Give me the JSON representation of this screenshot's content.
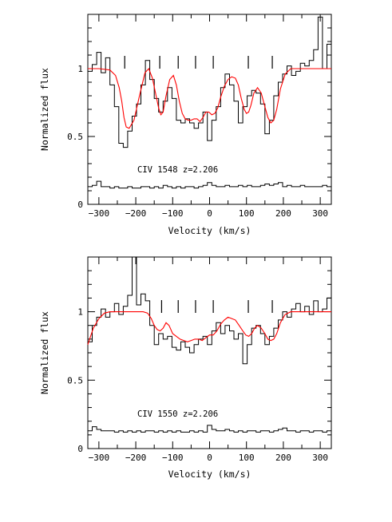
{
  "chart_data": [
    {
      "type": "line",
      "xlabel": "Velocity (km/s)",
      "ylabel": "Normalized flux",
      "xlim": [
        -330,
        330
      ],
      "ylim": [
        0,
        1.4
      ],
      "xticks": [
        -300,
        -200,
        -100,
        0,
        100,
        200,
        300
      ],
      "xtick_labels": [
        "−300",
        "−200",
        "−100",
        "0",
        "100",
        "200",
        "300"
      ],
      "yticks": [
        0,
        0.5,
        1
      ],
      "ytick_labels": [
        "0",
        "0.5",
        "1"
      ],
      "annotation": "CIV  1548  z=2.206",
      "component_markers": [
        -230,
        -135,
        -85,
        -38,
        10,
        105,
        170
      ],
      "series": [
        {
          "style": "histogram",
          "color": "#000000",
          "x": [
            -330,
            -318,
            -306,
            -294,
            -282,
            -270,
            -258,
            -246,
            -234,
            -222,
            -210,
            -198,
            -186,
            -174,
            -162,
            -150,
            -138,
            -126,
            -114,
            -102,
            -90,
            -78,
            -66,
            -54,
            -42,
            -30,
            -18,
            -6,
            6,
            18,
            30,
            42,
            54,
            66,
            78,
            90,
            102,
            114,
            126,
            138,
            150,
            162,
            174,
            186,
            198,
            210,
            222,
            234,
            246,
            258,
            270,
            282,
            294,
            306,
            318
          ],
          "y": [
            0.98,
            1.03,
            1.12,
            0.97,
            1.08,
            0.88,
            0.72,
            0.45,
            0.42,
            0.54,
            0.65,
            0.74,
            0.88,
            1.06,
            0.92,
            0.78,
            0.68,
            0.76,
            0.86,
            0.78,
            0.62,
            0.6,
            0.63,
            0.6,
            0.56,
            0.6,
            0.68,
            0.47,
            0.62,
            0.72,
            0.86,
            0.96,
            0.88,
            0.76,
            0.6,
            0.72,
            0.8,
            0.84,
            0.82,
            0.74,
            0.52,
            0.62,
            0.8,
            0.9,
            0.96,
            1.02,
            0.95,
            0.98,
            1.04,
            1.02,
            1.06,
            1.14,
            1.38,
            1.0,
            1.18
          ]
        },
        {
          "style": "model",
          "color": "#ff0000",
          "x": [
            -330,
            -300,
            -270,
            -255,
            -245,
            -238,
            -232,
            -226,
            -218,
            -205,
            -190,
            -175,
            -165,
            -155,
            -145,
            -138,
            -132,
            -126,
            -118,
            -108,
            -98,
            -90,
            -82,
            -74,
            -66,
            -58,
            -50,
            -42,
            -34,
            -26,
            -18,
            -10,
            -2,
            6,
            14,
            22,
            30,
            40,
            50,
            60,
            70,
            78,
            86,
            94,
            100,
            106,
            112,
            120,
            130,
            140,
            150,
            158,
            166,
            174,
            182,
            192,
            205,
            220,
            250,
            290,
            330
          ],
          "y": [
            1.0,
            1.0,
            0.99,
            0.95,
            0.86,
            0.76,
            0.64,
            0.57,
            0.56,
            0.62,
            0.8,
            0.97,
            1.0,
            0.93,
            0.8,
            0.71,
            0.66,
            0.68,
            0.8,
            0.92,
            0.95,
            0.88,
            0.76,
            0.67,
            0.63,
            0.62,
            0.62,
            0.63,
            0.63,
            0.61,
            0.64,
            0.68,
            0.68,
            0.66,
            0.67,
            0.71,
            0.79,
            0.87,
            0.92,
            0.94,
            0.93,
            0.88,
            0.78,
            0.7,
            0.67,
            0.68,
            0.73,
            0.82,
            0.86,
            0.82,
            0.72,
            0.64,
            0.6,
            0.62,
            0.7,
            0.85,
            0.96,
            1.0,
            1.0,
            1.0,
            1.0
          ]
        },
        {
          "style": "error",
          "color": "#000000",
          "x": [
            -330,
            -318,
            -306,
            -294,
            -282,
            -270,
            -258,
            -246,
            -234,
            -222,
            -210,
            -198,
            -186,
            -174,
            -162,
            -150,
            -138,
            -126,
            -114,
            -102,
            -90,
            -78,
            -66,
            -54,
            -42,
            -30,
            -18,
            -6,
            6,
            18,
            30,
            42,
            54,
            66,
            78,
            90,
            102,
            114,
            126,
            138,
            150,
            162,
            174,
            186,
            198,
            210,
            222,
            234,
            246,
            258,
            270,
            282,
            294,
            306,
            318
          ],
          "y": [
            0.13,
            0.14,
            0.17,
            0.13,
            0.13,
            0.12,
            0.13,
            0.12,
            0.12,
            0.13,
            0.12,
            0.12,
            0.13,
            0.13,
            0.12,
            0.13,
            0.12,
            0.14,
            0.13,
            0.12,
            0.13,
            0.12,
            0.13,
            0.13,
            0.12,
            0.13,
            0.14,
            0.16,
            0.14,
            0.13,
            0.13,
            0.14,
            0.13,
            0.13,
            0.14,
            0.13,
            0.14,
            0.13,
            0.13,
            0.14,
            0.15,
            0.14,
            0.15,
            0.16,
            0.13,
            0.14,
            0.13,
            0.13,
            0.14,
            0.13,
            0.13,
            0.13,
            0.13,
            0.14,
            0.13
          ]
        }
      ]
    },
    {
      "type": "line",
      "xlabel": "Velocity (km/s)",
      "ylabel": "Normalized flux",
      "xlim": [
        -330,
        330
      ],
      "ylim": [
        0,
        1.4
      ],
      "xticks": [
        -300,
        -200,
        -100,
        0,
        100,
        200,
        300
      ],
      "xtick_labels": [
        "−300",
        "−200",
        "−100",
        "0",
        "100",
        "200",
        "300"
      ],
      "yticks": [
        0,
        0.5,
        1
      ],
      "ytick_labels": [
        "0",
        "0.5",
        "1"
      ],
      "annotation": "CIV  1550  z=2.206",
      "component_markers": [
        -130,
        -85,
        -38,
        10,
        105,
        170
      ],
      "series": [
        {
          "style": "histogram",
          "color": "#000000",
          "x": [
            -330,
            -318,
            -306,
            -294,
            -282,
            -270,
            -258,
            -246,
            -234,
            -222,
            -210,
            -198,
            -186,
            -174,
            -162,
            -150,
            -138,
            -126,
            -114,
            -102,
            -90,
            -78,
            -66,
            -54,
            -42,
            -30,
            -18,
            -6,
            6,
            18,
            30,
            42,
            54,
            66,
            78,
            90,
            102,
            114,
            126,
            138,
            150,
            162,
            174,
            186,
            198,
            210,
            222,
            234,
            246,
            258,
            270,
            282,
            294,
            306,
            318
          ],
          "y": [
            0.78,
            0.9,
            0.96,
            1.02,
            0.96,
            1.0,
            1.06,
            0.98,
            1.04,
            1.12,
            1.45,
            1.05,
            1.13,
            1.08,
            0.9,
            0.76,
            0.84,
            0.8,
            0.82,
            0.74,
            0.72,
            0.78,
            0.74,
            0.7,
            0.76,
            0.8,
            0.82,
            0.76,
            0.86,
            0.92,
            0.84,
            0.9,
            0.86,
            0.8,
            0.84,
            0.62,
            0.76,
            0.88,
            0.9,
            0.84,
            0.76,
            0.82,
            0.88,
            0.94,
            1.0,
            0.96,
            1.02,
            1.06,
            1.0,
            1.04,
            0.98,
            1.08,
            1.0,
            1.02,
            1.1
          ]
        },
        {
          "style": "model",
          "color": "#ff0000",
          "x": [
            -330,
            -315,
            -300,
            -285,
            -270,
            -255,
            -240,
            -225,
            -210,
            -195,
            -180,
            -168,
            -158,
            -150,
            -142,
            -134,
            -126,
            -118,
            -110,
            -100,
            -90,
            -80,
            -70,
            -60,
            -50,
            -40,
            -30,
            -20,
            -10,
            0,
            10,
            20,
            30,
            40,
            50,
            60,
            70,
            80,
            90,
            98,
            106,
            114,
            122,
            130,
            140,
            150,
            158,
            166,
            174,
            182,
            192,
            205,
            220,
            250,
            290,
            330
          ],
          "y": [
            0.76,
            0.88,
            0.95,
            0.99,
            1.0,
            1.0,
            1.0,
            1.0,
            1.0,
            1.0,
            1.0,
            0.99,
            0.95,
            0.9,
            0.87,
            0.86,
            0.88,
            0.92,
            0.9,
            0.84,
            0.82,
            0.8,
            0.79,
            0.78,
            0.79,
            0.8,
            0.8,
            0.79,
            0.81,
            0.83,
            0.83,
            0.86,
            0.91,
            0.94,
            0.96,
            0.95,
            0.94,
            0.9,
            0.86,
            0.83,
            0.82,
            0.84,
            0.88,
            0.9,
            0.88,
            0.84,
            0.8,
            0.79,
            0.8,
            0.84,
            0.92,
            0.98,
            1.0,
            1.0,
            1.0,
            1.0
          ]
        },
        {
          "style": "error",
          "color": "#000000",
          "x": [
            -330,
            -318,
            -306,
            -294,
            -282,
            -270,
            -258,
            -246,
            -234,
            -222,
            -210,
            -198,
            -186,
            -174,
            -162,
            -150,
            -138,
            -126,
            -114,
            -102,
            -90,
            -78,
            -66,
            -54,
            -42,
            -30,
            -18,
            -6,
            6,
            18,
            30,
            42,
            54,
            66,
            78,
            90,
            102,
            114,
            126,
            138,
            150,
            162,
            174,
            186,
            198,
            210,
            222,
            234,
            246,
            258,
            270,
            282,
            294,
            306,
            318
          ],
          "y": [
            0.13,
            0.16,
            0.14,
            0.13,
            0.13,
            0.13,
            0.12,
            0.13,
            0.12,
            0.13,
            0.12,
            0.13,
            0.12,
            0.13,
            0.13,
            0.12,
            0.13,
            0.12,
            0.13,
            0.12,
            0.13,
            0.12,
            0.12,
            0.13,
            0.12,
            0.13,
            0.12,
            0.17,
            0.14,
            0.13,
            0.13,
            0.14,
            0.13,
            0.12,
            0.13,
            0.12,
            0.13,
            0.13,
            0.12,
            0.13,
            0.13,
            0.12,
            0.13,
            0.14,
            0.15,
            0.13,
            0.13,
            0.12,
            0.13,
            0.13,
            0.12,
            0.13,
            0.13,
            0.12,
            0.13
          ]
        }
      ]
    }
  ]
}
